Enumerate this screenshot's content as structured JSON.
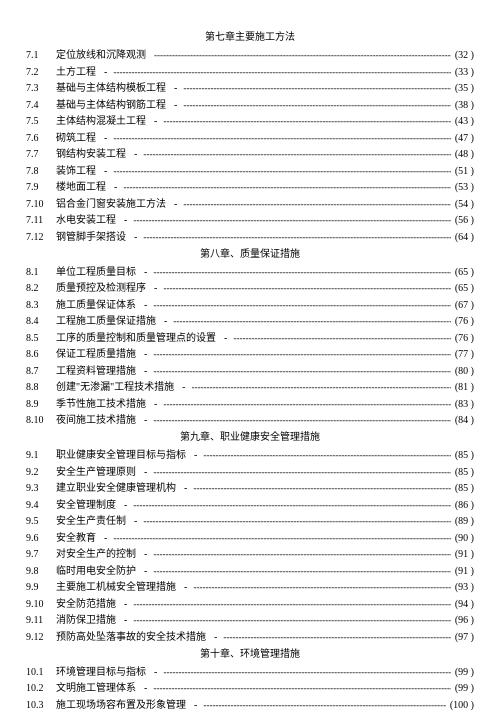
{
  "chapters": [
    {
      "title": "第七章主要施工方法",
      "items": [
        {
          "num": "7.1",
          "title": "定位放线和沉降观测",
          "lead": "",
          "page": "(32 )"
        },
        {
          "num": "7.2",
          "title": "土方工程",
          "lead": "-",
          "page": "(33 )"
        },
        {
          "num": "7.3",
          "title": "基础与主体结构模板工程",
          "lead": "-",
          "page": "(35       )"
        },
        {
          "num": "7.4",
          "title": "基础与主体结构钢筋工程",
          "lead": "-",
          "page": "(38       )"
        },
        {
          "num": "7.5",
          "title": "主体结构混凝土工程",
          "lead": "-",
          "page": "(43 )"
        },
        {
          "num": "7.6",
          "title": "砌筑工程",
          "lead": "-",
          "page": "(47                              )"
        },
        {
          "num": "7.7",
          "title": "钢结构安装工程",
          "lead": "-",
          "page": "(48 )"
        },
        {
          "num": "7.8",
          "title": "装饰工程",
          "lead": "-",
          "page": "(51 )"
        },
        {
          "num": "7.9",
          "title": "楼地面工程",
          "lead": "-",
          "page": "(53 )"
        },
        {
          "num": "7.10",
          "title": "铝合金门窗安装施工方法",
          "lead": "-",
          "page": "(54 )"
        },
        {
          "num": "7.11",
          "title": "水电安装工程",
          "lead": "-",
          "page": "(56 )"
        },
        {
          "num": "7.12",
          "title": "钢管脚手架搭设",
          "lead": "-",
          "page": "(64 )"
        }
      ]
    },
    {
      "title": "第八章、质量保证措施",
      "items": [
        {
          "num": "8.1",
          "title": "单位工程质量目标",
          "lead": "-",
          "page": "(65 )"
        },
        {
          "num": "8.2",
          "title": "质量预控及检测程序",
          "lead": "-",
          "page": "(65 )"
        },
        {
          "num": "8.3",
          "title": "施工质量保证体系",
          "lead": "-",
          "page": "(67       )"
        },
        {
          "num": "8.4",
          "title": "工程施工质量保证措施",
          "lead": "-",
          "page": "(76 )"
        },
        {
          "num": "8.5",
          "title": "工序的质量控制和质量管理点的设置",
          "lead": "-",
          "page": "(76 )"
        },
        {
          "num": "8.6",
          "title": "保证工程质量措施",
          "lead": "-",
          "page": "(77       )"
        },
        {
          "num": "8.7",
          "title": "工程资料管理措施",
          "lead": "-",
          "page": "(80       )"
        },
        {
          "num": "8.8",
          "title": "创建\"无渗漏\"工程技术措施",
          "lead": "-",
          "page": "(81 )"
        },
        {
          "num": "8.9",
          "title": "季节性施工技术措施",
          "lead": "-",
          "page": "(83 )"
        },
        {
          "num": "8.10",
          "title": "夜间施工技术措施",
          "lead": "-",
          "page": "(84 )"
        }
      ]
    },
    {
      "title": "第九章、职业健康安全管理措施",
      "items": [
        {
          "num": "9.1",
          "title": "职业健康安全管理目标与指标",
          "lead": "-",
          "page": "(85 )"
        },
        {
          "num": "9.2",
          "title": "安全生产管理原则",
          "lead": "-",
          "page": "(85 )"
        },
        {
          "num": "9.3",
          "title": "建立职业安全健康管理机构",
          "lead": "-",
          "page": "(85 )"
        },
        {
          "num": "9.4",
          "title": "安全管理制度",
          "lead": "-",
          "page": "(86 )"
        },
        {
          "num": "9.5",
          "title": "安全生产责任制",
          "lead": "-",
          "page": "(89 )"
        },
        {
          "num": "9.6",
          "title": "安全教育",
          "lead": "-",
          "page": "(90 )"
        },
        {
          "num": "9.7",
          "title": "对安全生产的控制",
          "lead": "-",
          "page": "(91 )"
        },
        {
          "num": "9.8",
          "title": "临时用电安全防护",
          "lead": "-",
          "page": "(91 )"
        },
        {
          "num": "9.9",
          "title": "主要施工机械安全管理措施",
          "lead": "-",
          "page": "(93 )"
        },
        {
          "num": "9.10",
          "title": "安全防范措施",
          "lead": "-",
          "page": "(94 )"
        },
        {
          "num": "9.11",
          "title": "消防保卫措施",
          "lead": "-",
          "page": "(96 )"
        },
        {
          "num": "9.12",
          "title": "预防高处坠落事故的安全技术措施",
          "lead": "-",
          "page": "(97 )"
        }
      ]
    },
    {
      "title": "第十章、环境管理措施",
      "items": [
        {
          "num": "10.1",
          "title": "环境管理目标与指标",
          "lead": "-",
          "page": "(99 )"
        },
        {
          "num": "10.2",
          "title": "文明施工管理体系",
          "lead": "-",
          "page": "(99 )"
        },
        {
          "num": "10.3",
          "title": "施工现场场容布置及形象管理",
          "lead": "-",
          "page": "(100 )"
        }
      ]
    }
  ]
}
